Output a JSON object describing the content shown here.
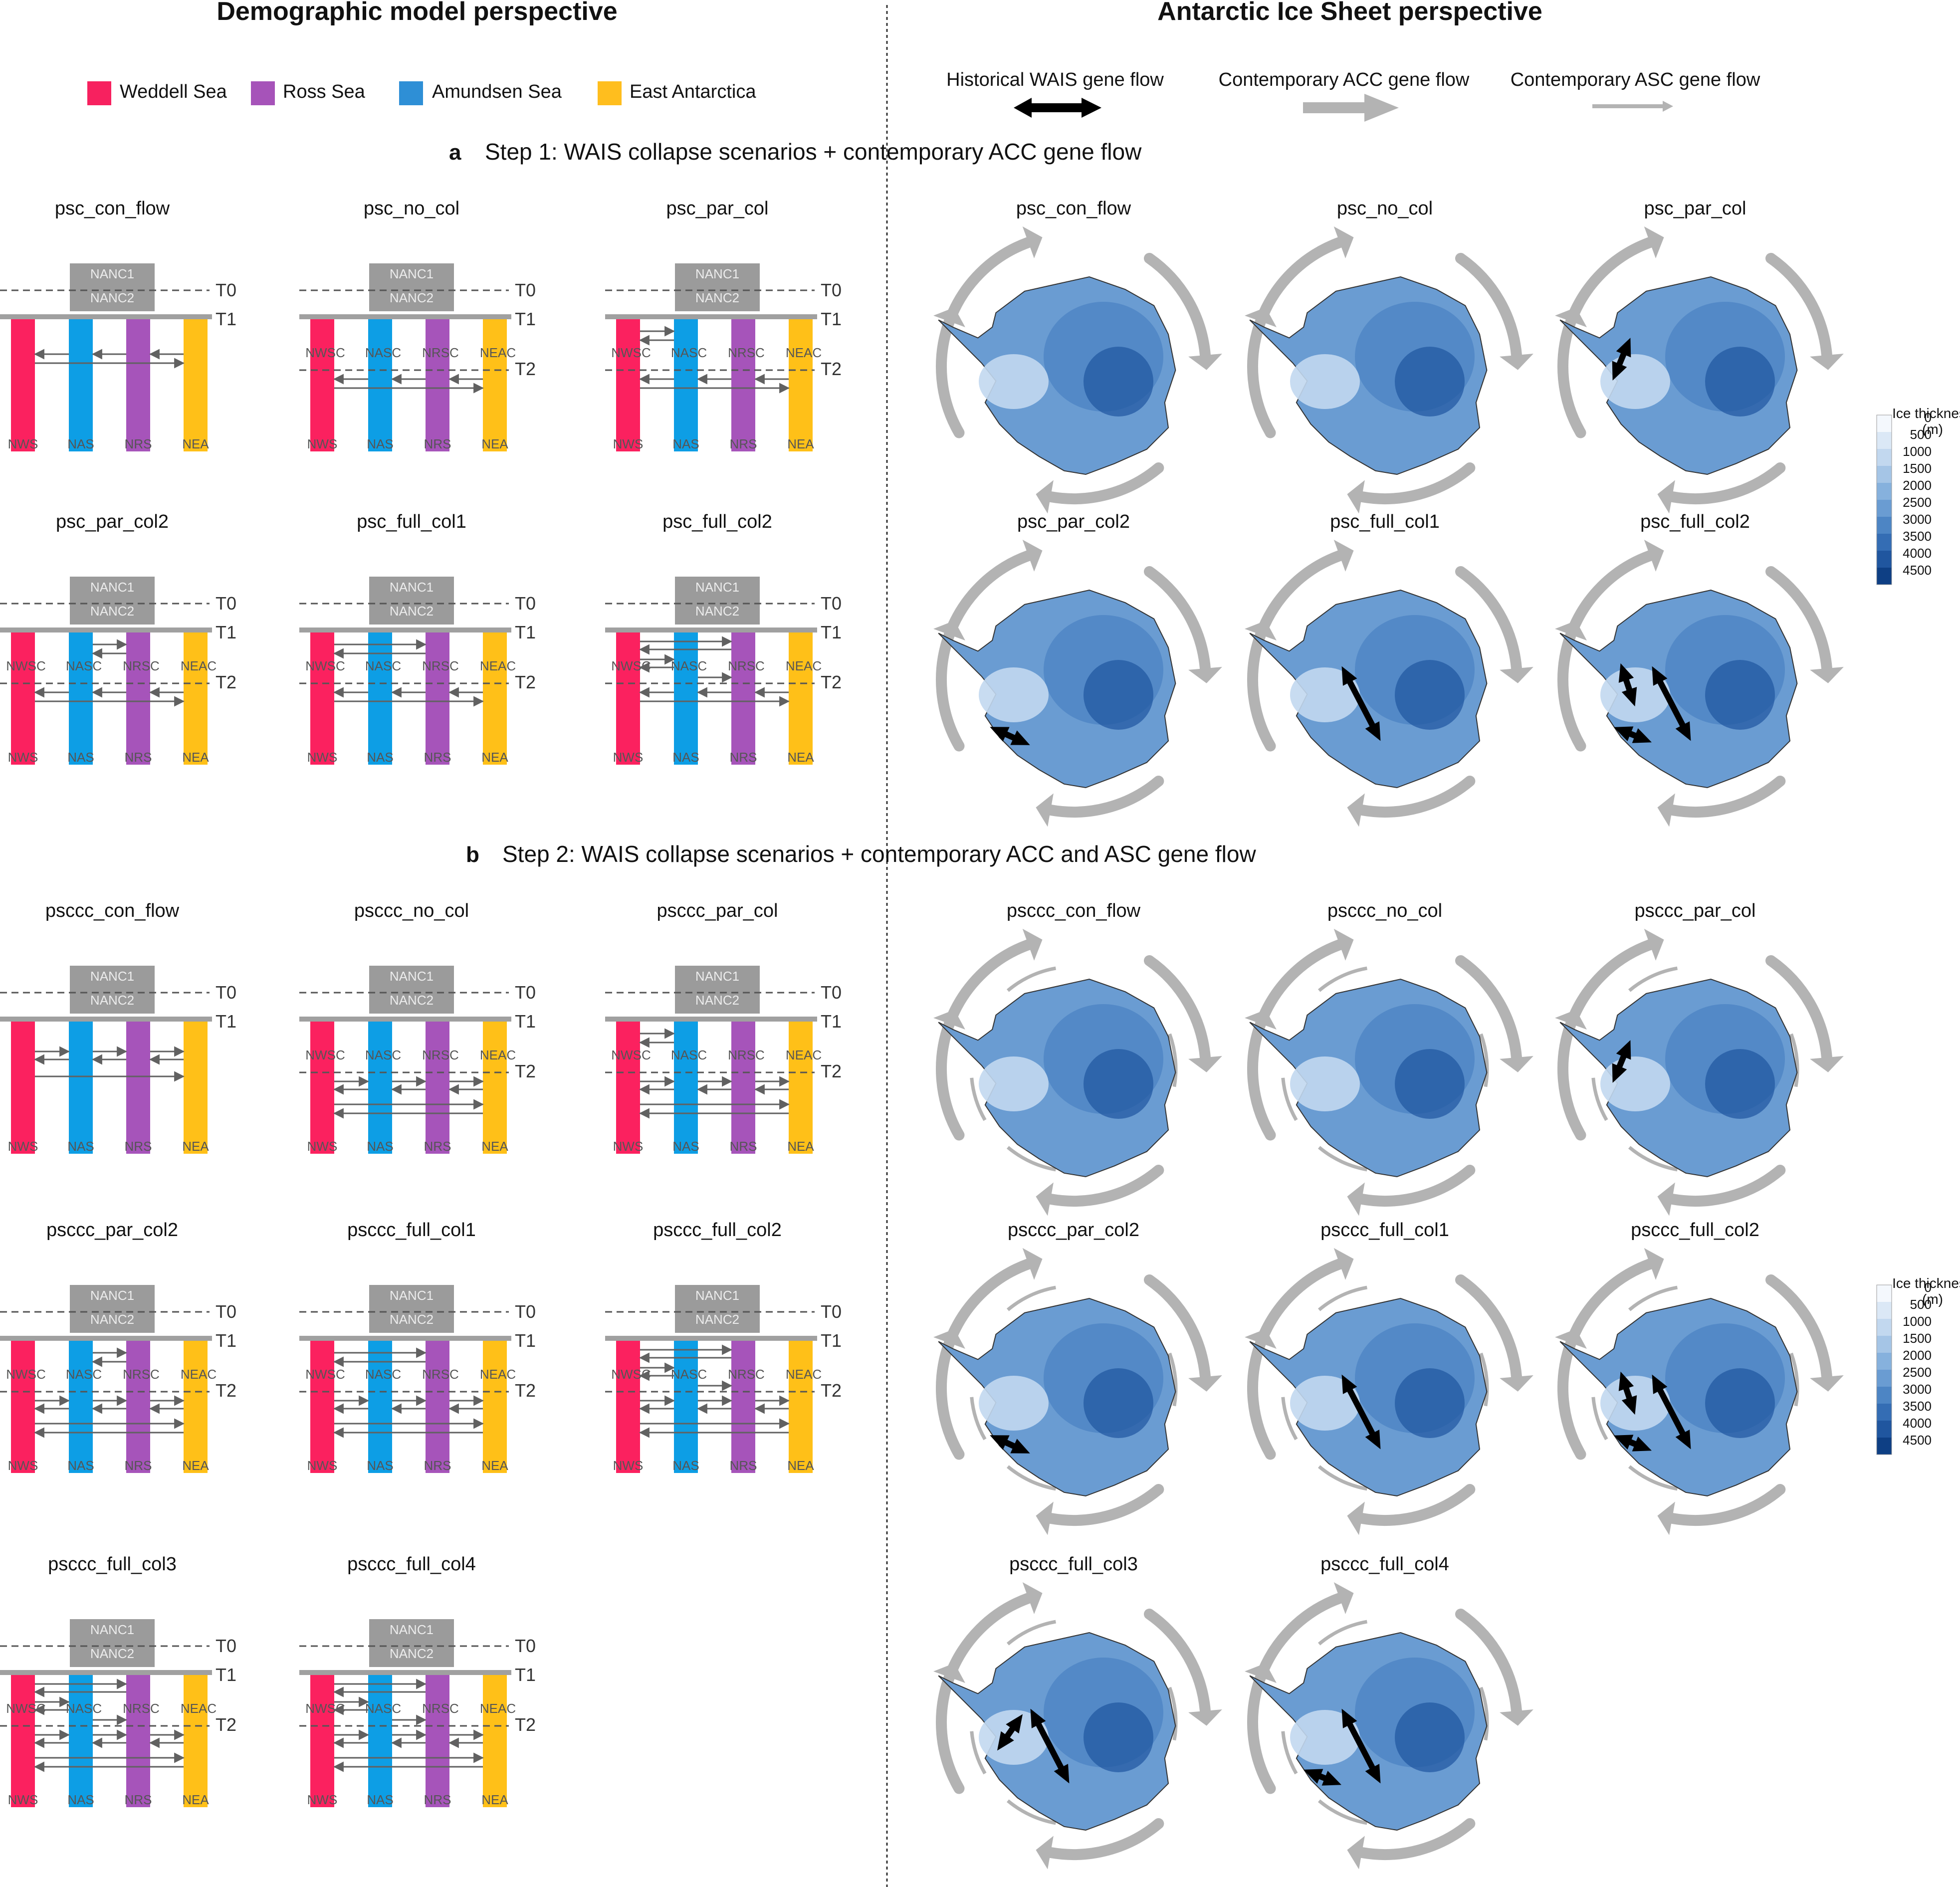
{
  "left_heading": "Demographic model perspective",
  "right_heading": "Antarctic Ice Sheet perspective",
  "legend": [
    {
      "label": "Weddell Sea",
      "color": "#f7215f"
    },
    {
      "label": "Ross Sea",
      "color": "#a653b9"
    },
    {
      "label": "Amundsen Sea",
      "color": "#2e8fd6"
    },
    {
      "label": "East Antarctica",
      "color": "#ffbe1e"
    }
  ],
  "flow_legend": {
    "wais": "Historical WAIS gene flow",
    "acc": "Contemporary ACC gene flow",
    "asc": "Contemporary ASC gene flow"
  },
  "section_a": {
    "letter": "a",
    "title": "Step 1: WAIS collapse scenarios + contemporary ACC gene flow"
  },
  "section_b": {
    "letter": "b",
    "title": "Step 2: WAIS collapse scenarios + contemporary ACC and ASC gene flow"
  },
  "colors": {
    "weddell": "#fb215f",
    "amundsen": "#0d9ee5",
    "ross": "#a654ba",
    "east": "#ffc018",
    "anc_box": "#9b9b9b",
    "bar": "#a0a0a0",
    "arrow": "#616161",
    "acc_arrow": "#b3b3b3",
    "wais_arrow": "#000000"
  },
  "labels": {
    "nanc1": "NANC1",
    "nanc2": "NANC2",
    "t0": "T0",
    "t1": "T1",
    "t2": "T2",
    "pops": [
      "NWS",
      "NAS",
      "NRS",
      "NEA"
    ],
    "subs": [
      "NWSC",
      "NASC",
      "NRSC",
      "NEAC"
    ]
  },
  "ice_legend": {
    "title": "Ice thickness",
    "unit": "(m)",
    "ticks": [
      "0",
      "500",
      "1000",
      "1500",
      "2000",
      "2500",
      "3000",
      "3500",
      "4000",
      "4500"
    ],
    "colors": [
      "#f4f8fd",
      "#dbe8f6",
      "#c2d8ef",
      "#a5c5e6",
      "#86b1dd",
      "#6a9cd2",
      "#4d85c4",
      "#346db4",
      "#20569f",
      "#0e3f84"
    ]
  },
  "models": [
    {
      "name": "psc_con_flow",
      "section": "a"
    },
    {
      "name": "psc_no_col",
      "section": "a"
    },
    {
      "name": "psc_par_col",
      "section": "a"
    },
    {
      "name": "psc_par_col2",
      "section": "a"
    },
    {
      "name": "psc_full_col1",
      "section": "a"
    },
    {
      "name": "psc_full_col2",
      "section": "a"
    },
    {
      "name": "psccc_con_flow",
      "section": "b"
    },
    {
      "name": "psccc_no_col",
      "section": "b"
    },
    {
      "name": "psccc_par_col",
      "section": "b"
    },
    {
      "name": "psccc_par_col2",
      "section": "b"
    },
    {
      "name": "psccc_full_col1",
      "section": "b"
    },
    {
      "name": "psccc_full_col2",
      "section": "b"
    },
    {
      "name": "psccc_full_col3",
      "section": "b"
    },
    {
      "name": "psccc_full_col4",
      "section": "b"
    }
  ]
}
